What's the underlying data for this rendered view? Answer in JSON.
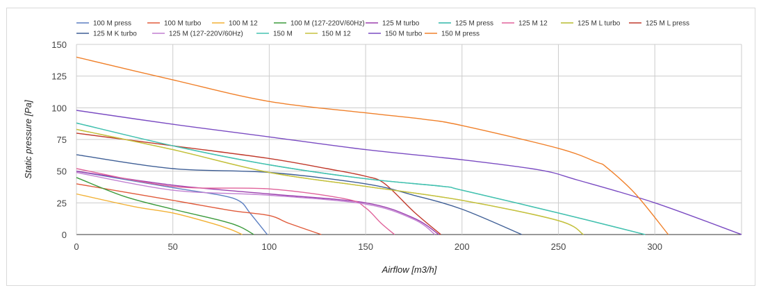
{
  "chart_data": {
    "type": "line",
    "title": "",
    "xlabel": "Airflow [m3/h]",
    "ylabel": "Static pressure [Pa]",
    "xlim": [
      0,
      345
    ],
    "ylim": [
      0,
      150
    ],
    "xticks": [
      0,
      50,
      100,
      150,
      200,
      250,
      300
    ],
    "yticks": [
      0,
      25,
      50,
      75,
      100,
      125,
      150
    ],
    "grid": true,
    "legend": "top",
    "series": [
      {
        "name": "100 M press",
        "color": "#5B7FC2",
        "points": [
          [
            0,
            50
          ],
          [
            50,
            37
          ],
          [
            75,
            31
          ],
          [
            85,
            26
          ],
          [
            90,
            17
          ],
          [
            99,
            0
          ]
        ]
      },
      {
        "name": "100 M turbo",
        "color": "#E05A3A",
        "points": [
          [
            0,
            40
          ],
          [
            50,
            27
          ],
          [
            80,
            19
          ],
          [
            100,
            15
          ],
          [
            110,
            9
          ],
          [
            127,
            0
          ]
        ]
      },
      {
        "name": "100 M 12",
        "color": "#F2B134",
        "points": [
          [
            0,
            32
          ],
          [
            30,
            22
          ],
          [
            50,
            17
          ],
          [
            70,
            9
          ],
          [
            80,
            4
          ],
          [
            86,
            0
          ]
        ]
      },
      {
        "name": "100 M (127-220V/60Hz)",
        "color": "#3A9A3A",
        "points": [
          [
            0,
            45
          ],
          [
            25,
            30
          ],
          [
            50,
            20
          ],
          [
            75,
            11
          ],
          [
            85,
            6
          ],
          [
            92,
            0
          ]
        ]
      },
      {
        "name": "125 M turbo",
        "color": "#9B3FAE",
        "points": [
          [
            0,
            50
          ],
          [
            50,
            39
          ],
          [
            100,
            32
          ],
          [
            150,
            25
          ],
          [
            175,
            13
          ],
          [
            188,
            0
          ]
        ]
      },
      {
        "name": "125 M press",
        "color": "#2EB5A8",
        "points": [
          [
            0,
            88
          ],
          [
            50,
            70
          ],
          [
            100,
            55
          ],
          [
            150,
            44
          ],
          [
            190,
            38
          ],
          [
            200,
            35
          ],
          [
            250,
            17
          ],
          [
            295,
            0
          ]
        ]
      },
      {
        "name": "125 M 12",
        "color": "#E0629A",
        "points": [
          [
            0,
            52
          ],
          [
            50,
            38
          ],
          [
            100,
            36
          ],
          [
            140,
            28
          ],
          [
            150,
            21
          ],
          [
            158,
            9
          ],
          [
            165,
            0
          ]
        ]
      },
      {
        "name": "125 M L turbo",
        "color": "#B7BB2E",
        "points": [
          [
            0,
            83
          ],
          [
            50,
            67
          ],
          [
            100,
            49
          ],
          [
            150,
            38
          ],
          [
            200,
            27
          ],
          [
            250,
            11
          ],
          [
            263,
            0
          ]
        ]
      },
      {
        "name": "125 M L press",
        "color": "#C0392B",
        "points": [
          [
            0,
            80
          ],
          [
            50,
            70
          ],
          [
            100,
            60
          ],
          [
            130,
            52
          ],
          [
            150,
            46
          ],
          [
            160,
            40
          ],
          [
            175,
            18
          ],
          [
            189,
            0
          ]
        ]
      },
      {
        "name": "125 M K turbo",
        "color": "#3F5F96",
        "points": [
          [
            0,
            63
          ],
          [
            50,
            52
          ],
          [
            100,
            49
          ],
          [
            150,
            40
          ],
          [
            175,
            31
          ],
          [
            200,
            20
          ],
          [
            231,
            0
          ]
        ]
      },
      {
        "name": "125 M (127-220V/60Hz)",
        "color": "#C07FD1",
        "points": [
          [
            0,
            49
          ],
          [
            50,
            35
          ],
          [
            100,
            31
          ],
          [
            150,
            24
          ],
          [
            175,
            12
          ],
          [
            186,
            0
          ]
        ]
      },
      {
        "name": "150 M",
        "color": "#45C2B0",
        "points": [
          [
            0,
            88
          ],
          [
            50,
            70
          ],
          [
            100,
            55
          ],
          [
            150,
            44
          ],
          [
            190,
            38
          ],
          [
            200,
            35
          ],
          [
            250,
            17
          ],
          [
            295,
            0
          ]
        ]
      },
      {
        "name": "150 M 12",
        "color": "#C5C13E",
        "points": [
          [
            0,
            83
          ],
          [
            50,
            67
          ],
          [
            100,
            49
          ],
          [
            150,
            38
          ],
          [
            200,
            27
          ],
          [
            250,
            11
          ],
          [
            263,
            0
          ]
        ]
      },
      {
        "name": "150 M turbo",
        "color": "#7A4BC2",
        "points": [
          [
            0,
            98
          ],
          [
            50,
            87
          ],
          [
            100,
            77
          ],
          [
            150,
            67
          ],
          [
            200,
            59
          ],
          [
            240,
            51
          ],
          [
            260,
            43
          ],
          [
            300,
            25
          ],
          [
            345,
            0
          ]
        ]
      },
      {
        "name": "150 M press",
        "color": "#F0802A",
        "points": [
          [
            0,
            140
          ],
          [
            50,
            122
          ],
          [
            100,
            105
          ],
          [
            150,
            96
          ],
          [
            180,
            91
          ],
          [
            200,
            86
          ],
          [
            250,
            68
          ],
          [
            270,
            57
          ],
          [
            275,
            53
          ],
          [
            290,
            32
          ],
          [
            307,
            0
          ]
        ]
      }
    ]
  }
}
